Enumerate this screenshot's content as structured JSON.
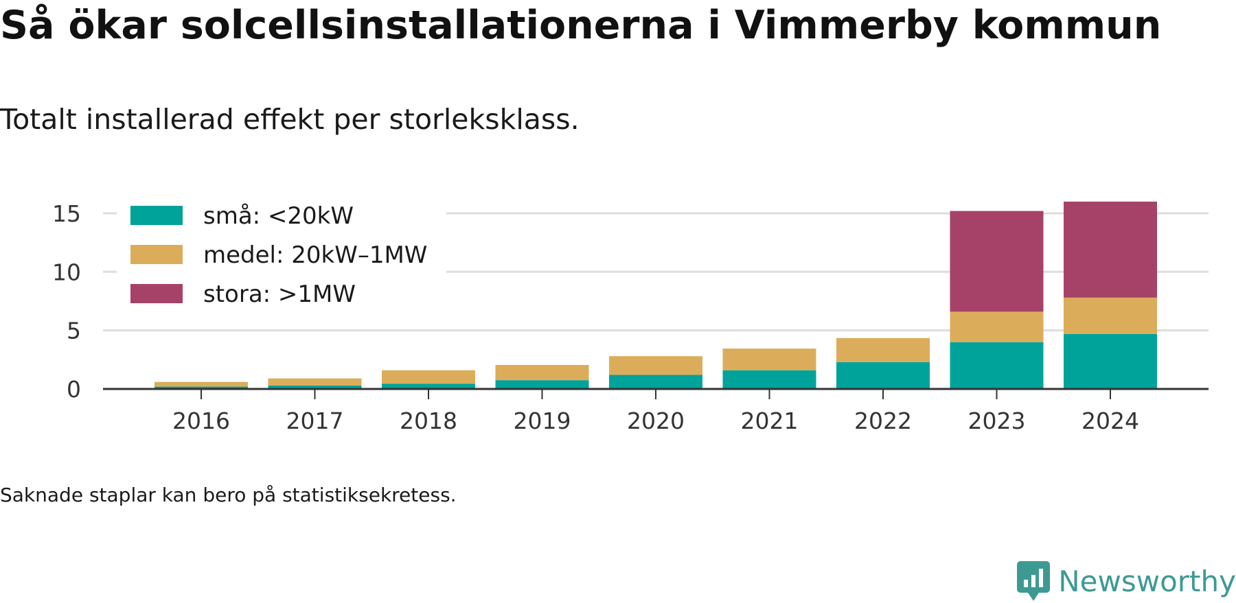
{
  "header": {
    "title": "Så ökar solcellsinstallationerna i Vimmerby kommun",
    "subtitle": "Totalt installerad effekt per storleksklass."
  },
  "footer": {
    "note": "Saknade staplar kan bero på statistiksekretess.",
    "brand": "Newsworthy",
    "brand_icon": "newsworthy-logo-icon",
    "brand_color": "#3d9a93"
  },
  "chart_data": {
    "type": "bar",
    "stacked": true,
    "categories": [
      "2016",
      "2017",
      "2018",
      "2019",
      "2020",
      "2021",
      "2022",
      "2023",
      "2024"
    ],
    "series": [
      {
        "name": "små: <20kW",
        "color": "#00a39a",
        "values": [
          0.2,
          0.3,
          0.45,
          0.75,
          1.2,
          1.6,
          2.3,
          4.0,
          4.7
        ]
      },
      {
        "name": "medel: 20kW–1MW",
        "color": "#dbad5a",
        "values": [
          0.4,
          0.6,
          1.15,
          1.3,
          1.6,
          1.85,
          2.05,
          2.6,
          3.1
        ]
      },
      {
        "name": "stora: >1MW",
        "color": "#a64268",
        "values": [
          0,
          0,
          0,
          0,
          0,
          0,
          0,
          8.6,
          8.2
        ]
      }
    ],
    "y_ticks": [
      "0",
      "5",
      "10",
      "15"
    ],
    "ylim": [
      0,
      16
    ],
    "grid": true,
    "legend_position": "top-left"
  }
}
